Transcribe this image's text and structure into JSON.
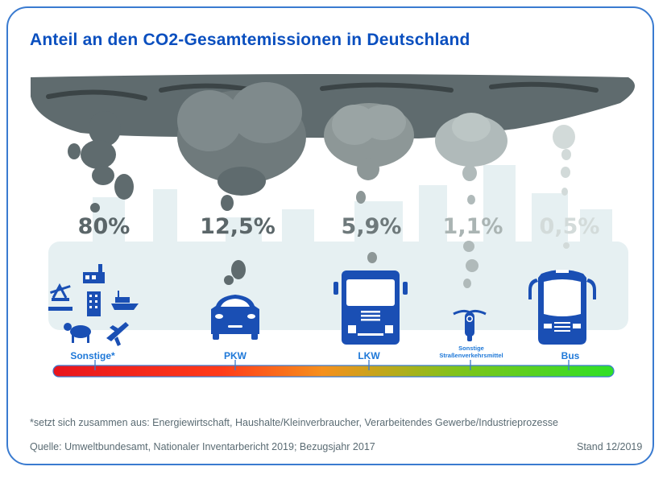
{
  "title": "Anteil an den CO2-Gesamtemissionen in Deutschland",
  "chart_data": {
    "type": "bar",
    "title": "Anteil an den CO2-Gesamtemissionen in Deutschland",
    "unit": "%",
    "categories": [
      "Sonstige*",
      "PKW",
      "LKW",
      "Sonstige Straßenverkehrsmittel",
      "Bus"
    ],
    "values": [
      80,
      12.5,
      5.9,
      1.1,
      0.5
    ],
    "value_labels": [
      "80%",
      "12,5%",
      "5,9%",
      "1,1%",
      "0,5%"
    ],
    "scale": {
      "from": "high emissions",
      "to": "low emissions",
      "colors": [
        "#e8141c",
        "#ff3b1a",
        "#f5901e",
        "#7fc31c",
        "#2fe027"
      ]
    }
  },
  "categories": [
    {
      "label": "Sonstige*",
      "value_label": "80%",
      "icons": [
        "oil-pump-icon",
        "factory-icon",
        "office-building-icon",
        "cargo-ship-icon",
        "cow-icon",
        "airplane-icon"
      ]
    },
    {
      "label": "PKW",
      "value_label": "12,5%",
      "icons": [
        "car-icon"
      ]
    },
    {
      "label": "LKW",
      "value_label": "5,9%",
      "icons": [
        "truck-icon"
      ]
    },
    {
      "label_line1": "Sonstige",
      "label_line2": "Straßenverkehrsmittel",
      "value_label": "1,1%",
      "icons": [
        "motorcycle-icon"
      ]
    },
    {
      "label": "Bus",
      "value_label": "0,5%",
      "icons": [
        "bus-icon"
      ]
    }
  ],
  "colors": {
    "accent": "#0a4fbf",
    "icon": "#1a4fb4",
    "label": "#1e78d8",
    "border": "#3a7bd0",
    "smoke_dark": "#5f6b6e",
    "smoke_light": "#c9d3d2"
  },
  "footnote": "*setzt sich zusammen aus: Energiewirtschaft, Haushalte/Kleinverbraucher, Verarbeitendes Gewerbe/Industrieprozesse",
  "source": "Quelle: Umweltbundesamt, Nationaler Inventarbericht 2019; Bezugsjahr 2017",
  "stand": "Stand 12/2019"
}
